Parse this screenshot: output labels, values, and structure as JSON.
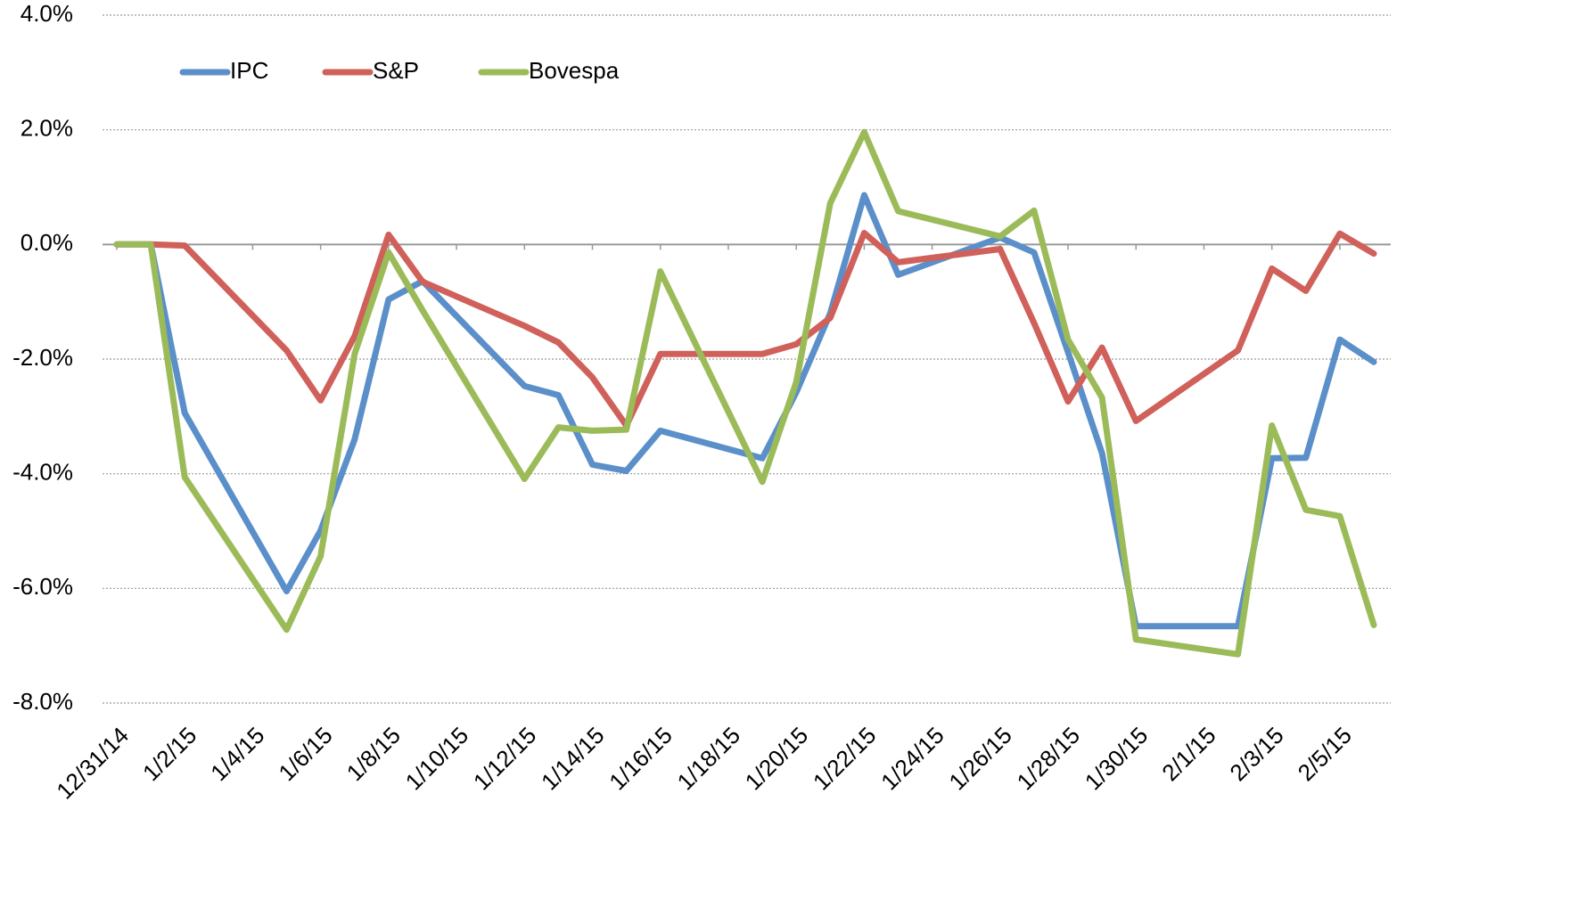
{
  "chart_data": {
    "type": "line",
    "x": [
      "12/31/14",
      "1/1/15",
      "1/2/15",
      "1/5/15",
      "1/6/15",
      "1/7/15",
      "1/8/15",
      "1/9/15",
      "1/12/15",
      "1/13/15",
      "1/14/15",
      "1/15/15",
      "1/16/15",
      "1/19/15",
      "1/20/15",
      "1/21/15",
      "1/22/15",
      "1/23/15",
      "1/26/15",
      "1/27/15",
      "1/28/15",
      "1/29/15",
      "1/30/15",
      "2/2/15",
      "2/3/15",
      "2/4/15",
      "2/5/15",
      "2/6/15"
    ],
    "series": [
      {
        "name": "IPC",
        "color": "#5b8fc9",
        "values": [
          0,
          0,
          -2.94,
          -6.05,
          -4.99,
          -3.4,
          -0.96,
          -0.64,
          -2.47,
          -2.63,
          -3.84,
          -3.95,
          -3.25,
          -3.73,
          -2.58,
          -1.2,
          0.86,
          -0.53,
          0.12,
          -0.14,
          -1.88,
          -3.64,
          -6.66,
          -6.66,
          -3.73,
          -3.72,
          -1.66,
          -2.05
        ]
      },
      {
        "name": "S&P",
        "color": "#d0605a",
        "values": [
          0,
          0,
          -0.02,
          -1.85,
          -2.72,
          -1.6,
          0.17,
          -0.65,
          -1.42,
          -1.71,
          -2.32,
          -3.16,
          -1.91,
          -1.91,
          -1.74,
          -1.28,
          0.2,
          -0.31,
          -0.08,
          -1.37,
          -2.74,
          -1.8,
          -3.08,
          -1.85,
          -0.42,
          -0.81,
          0.19,
          -0.16
        ]
      },
      {
        "name": "Bovespa",
        "color": "#9bbb59",
        "values": [
          0,
          0,
          -4.06,
          -6.72,
          -5.44,
          -1.91,
          -0.14,
          -1.15,
          -4.09,
          -3.19,
          -3.25,
          -3.23,
          -0.47,
          -4.14,
          -2.4,
          0.72,
          1.96,
          0.58,
          0.14,
          0.59,
          -1.66,
          -2.67,
          -6.89,
          -7.15,
          -3.16,
          -4.63,
          -4.74,
          -6.64
        ]
      }
    ],
    "xlim": [
      "12/31/14",
      "2/6/15"
    ],
    "xticks": [
      "12/31/14",
      "1/2/15",
      "1/4/15",
      "1/6/15",
      "1/8/15",
      "1/10/15",
      "1/12/15",
      "1/14/15",
      "1/16/15",
      "1/18/15",
      "1/20/15",
      "1/22/15",
      "1/24/15",
      "1/26/15",
      "1/28/15",
      "1/30/15",
      "2/1/15",
      "2/3/15",
      "2/5/15"
    ],
    "ylim": [
      -8,
      4
    ],
    "yticks": [
      {
        "value": 4,
        "label": "4.0%"
      },
      {
        "value": 2,
        "label": "2.0%"
      },
      {
        "value": 0,
        "label": "0.0%"
      },
      {
        "value": -2,
        "label": "-2.0%"
      },
      {
        "value": -4,
        "label": "-4.0%"
      },
      {
        "value": -6,
        "label": "-6.0%"
      },
      {
        "value": -8,
        "label": "-8.0%"
      }
    ],
    "grid": true,
    "legend": "top-left"
  }
}
